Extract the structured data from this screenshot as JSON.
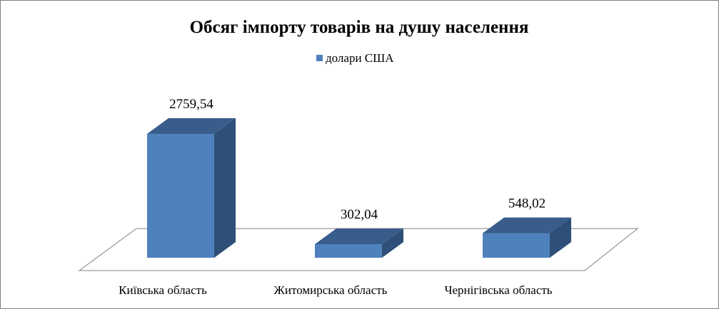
{
  "chart_data": {
    "type": "bar",
    "title": "Обсяг імпорту товарів на душу населення",
    "categories": [
      "Київська область",
      "Житомирська область",
      "Чернігівська область"
    ],
    "series": [
      {
        "name": "долари США",
        "values": [
          2759.54,
          302.04,
          548.02
        ]
      }
    ],
    "data_labels": [
      "2759,54",
      "302,04",
      "548,02"
    ],
    "xlabel": "",
    "ylabel": "",
    "ylim": [
      0,
      2759.54
    ],
    "grid": false,
    "legend_position": "top",
    "style": "3d-column",
    "colors": {
      "bar_front": "#4F81BD",
      "bar_top": "#385D8A",
      "bar_side": "#2F4F78",
      "floor_stroke": "#808080"
    }
  }
}
